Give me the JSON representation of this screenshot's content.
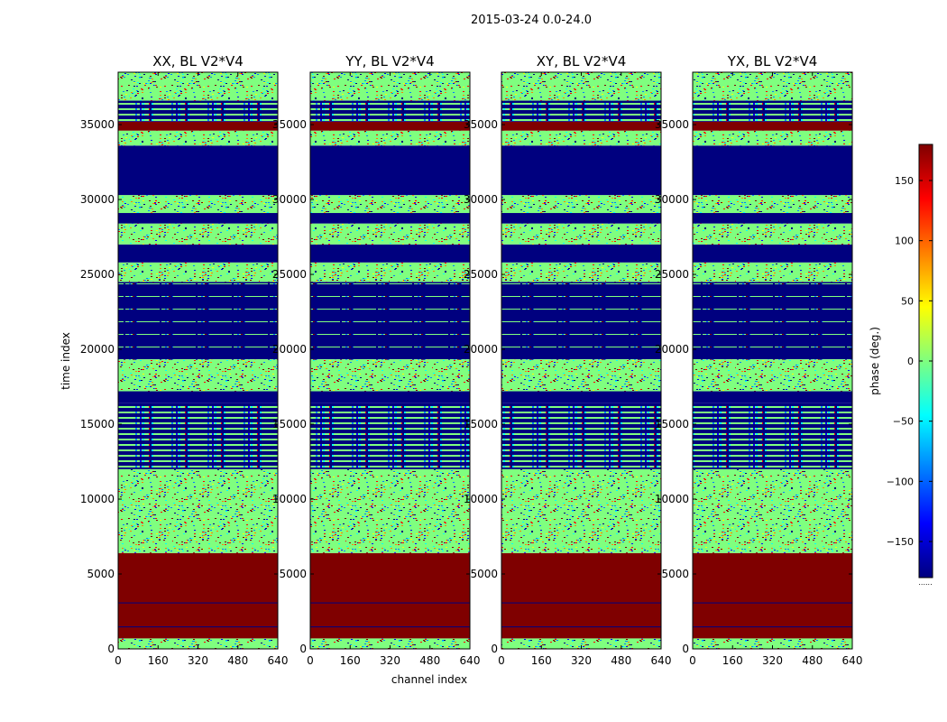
{
  "figure": {
    "suptitle": "2015-03-24 0.0-24.0",
    "xlabel": "channel index",
    "ylabel": "time index"
  },
  "colorbar": {
    "label": "phase (deg.)",
    "range": [
      -180,
      180
    ],
    "ticks": [
      -150,
      -100,
      -50,
      0,
      50,
      100,
      150
    ],
    "tick_labels": [
      "−150",
      "−100",
      "−50",
      "0",
      "50",
      "100",
      "150"
    ],
    "colormap": [
      "#00007f",
      "#0000ff",
      "#007fff",
      "#00ffff",
      "#7fff7f",
      "#ffff00",
      "#ff7f00",
      "#ff0000",
      "#7f0000"
    ],
    "footnote": "......"
  },
  "chart_data": {
    "type": "heatmap",
    "x_ticks": [
      0,
      160,
      320,
      480,
      640
    ],
    "y_ticks": [
      0,
      5000,
      10000,
      15000,
      20000,
      25000,
      30000,
      35000
    ],
    "xlim": [
      0,
      640
    ],
    "ylim": [
      0,
      38500
    ],
    "panels": [
      {
        "title": "XX, BL V2*V4",
        "bands": [
          [
            0,
            700,
            "noise"
          ],
          [
            700,
            6400,
            "red"
          ],
          [
            6400,
            8800,
            "noise"
          ],
          [
            8800,
            9500,
            "noise"
          ],
          [
            9500,
            12000,
            "noise"
          ],
          [
            12000,
            16400,
            "stripes"
          ],
          [
            16400,
            17200,
            "blue"
          ],
          [
            17200,
            19300,
            "noise"
          ],
          [
            19300,
            24500,
            "blue_stripes"
          ],
          [
            24500,
            25800,
            "noise"
          ],
          [
            25800,
            27000,
            "blue"
          ],
          [
            27000,
            28400,
            "noise"
          ],
          [
            28400,
            29100,
            "blue"
          ],
          [
            29100,
            30300,
            "noise"
          ],
          [
            30300,
            33600,
            "blue"
          ],
          [
            33600,
            34600,
            "noise"
          ],
          [
            34600,
            35200,
            "red"
          ],
          [
            35200,
            36600,
            "stripes"
          ],
          [
            36600,
            38500,
            "noise"
          ]
        ]
      },
      {
        "title": "YY, BL V2*V4",
        "bands": [
          [
            0,
            700,
            "noise"
          ],
          [
            700,
            6400,
            "red"
          ],
          [
            6400,
            8800,
            "noise"
          ],
          [
            8800,
            9500,
            "noise"
          ],
          [
            9500,
            12000,
            "noise"
          ],
          [
            12000,
            16400,
            "stripes"
          ],
          [
            16400,
            17200,
            "blue"
          ],
          [
            17200,
            19300,
            "noise"
          ],
          [
            19300,
            24500,
            "blue_stripes"
          ],
          [
            24500,
            25800,
            "noise"
          ],
          [
            25800,
            27000,
            "blue"
          ],
          [
            27000,
            28400,
            "noise"
          ],
          [
            28400,
            29100,
            "blue"
          ],
          [
            29100,
            30300,
            "noise"
          ],
          [
            30300,
            33600,
            "blue"
          ],
          [
            33600,
            34600,
            "noise"
          ],
          [
            34600,
            35200,
            "red"
          ],
          [
            35200,
            36600,
            "stripes"
          ],
          [
            36600,
            38500,
            "noise"
          ]
        ]
      },
      {
        "title": "XY, BL V2*V4",
        "bands": [
          [
            0,
            700,
            "noise"
          ],
          [
            700,
            6400,
            "red"
          ],
          [
            6400,
            8800,
            "noise"
          ],
          [
            8800,
            9500,
            "noise"
          ],
          [
            9500,
            12000,
            "noise"
          ],
          [
            12000,
            16400,
            "stripes"
          ],
          [
            16400,
            17200,
            "blue"
          ],
          [
            17200,
            19300,
            "noise"
          ],
          [
            19300,
            24500,
            "blue_stripes"
          ],
          [
            24500,
            25800,
            "noise"
          ],
          [
            25800,
            27000,
            "blue"
          ],
          [
            27000,
            28400,
            "noise"
          ],
          [
            28400,
            29100,
            "blue"
          ],
          [
            29100,
            30300,
            "noise"
          ],
          [
            30300,
            33600,
            "blue"
          ],
          [
            33600,
            34600,
            "noise"
          ],
          [
            34600,
            35200,
            "red"
          ],
          [
            35200,
            36600,
            "stripes"
          ],
          [
            36600,
            38500,
            "noise"
          ]
        ]
      },
      {
        "title": "YX, BL V2*V4",
        "bands": [
          [
            0,
            700,
            "noise"
          ],
          [
            700,
            6400,
            "red"
          ],
          [
            6400,
            8800,
            "noise"
          ],
          [
            8800,
            9500,
            "noise"
          ],
          [
            9500,
            12000,
            "noise"
          ],
          [
            12000,
            16400,
            "stripes"
          ],
          [
            16400,
            17200,
            "blue"
          ],
          [
            17200,
            19300,
            "noise"
          ],
          [
            19300,
            24500,
            "blue_stripes"
          ],
          [
            24500,
            25800,
            "noise"
          ],
          [
            25800,
            27000,
            "blue"
          ],
          [
            27000,
            28400,
            "noise"
          ],
          [
            28400,
            29100,
            "blue"
          ],
          [
            29100,
            30300,
            "noise"
          ],
          [
            30300,
            33600,
            "blue"
          ],
          [
            33600,
            34600,
            "noise"
          ],
          [
            34600,
            35200,
            "red"
          ],
          [
            35200,
            36600,
            "stripes"
          ],
          [
            36600,
            38500,
            "noise"
          ]
        ]
      }
    ]
  }
}
